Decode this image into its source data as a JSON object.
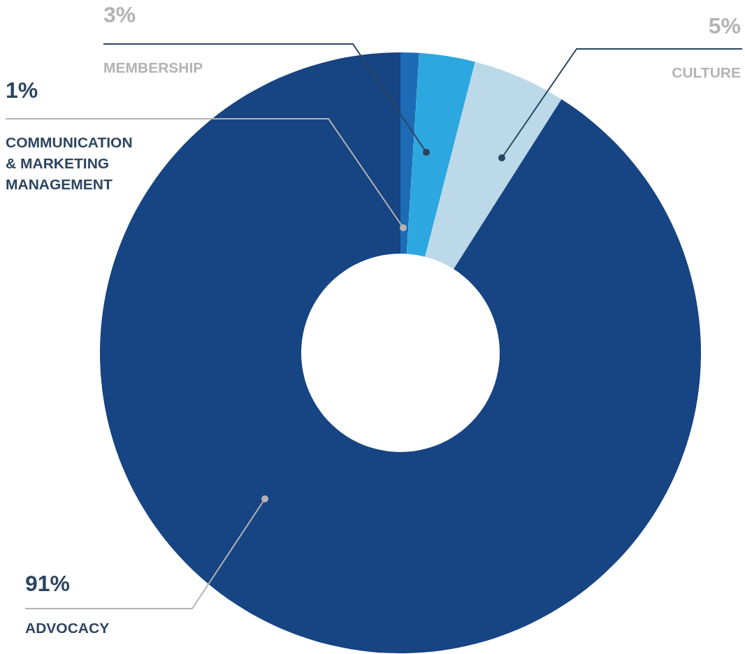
{
  "chart_data": {
    "type": "donut",
    "categories": [
      "COMMUNICATION & MARKETING MANAGEMENT",
      "MEMBERSHIP",
      "CULTURE",
      "ADVOCACY"
    ],
    "values": [
      1,
      3,
      5,
      91
    ],
    "value_labels": [
      "1%",
      "3%",
      "5%",
      "91%"
    ],
    "colors": [
      "#1d6bb5",
      "#2da7df",
      "#bcd9ea",
      "#174482"
    ]
  }
}
